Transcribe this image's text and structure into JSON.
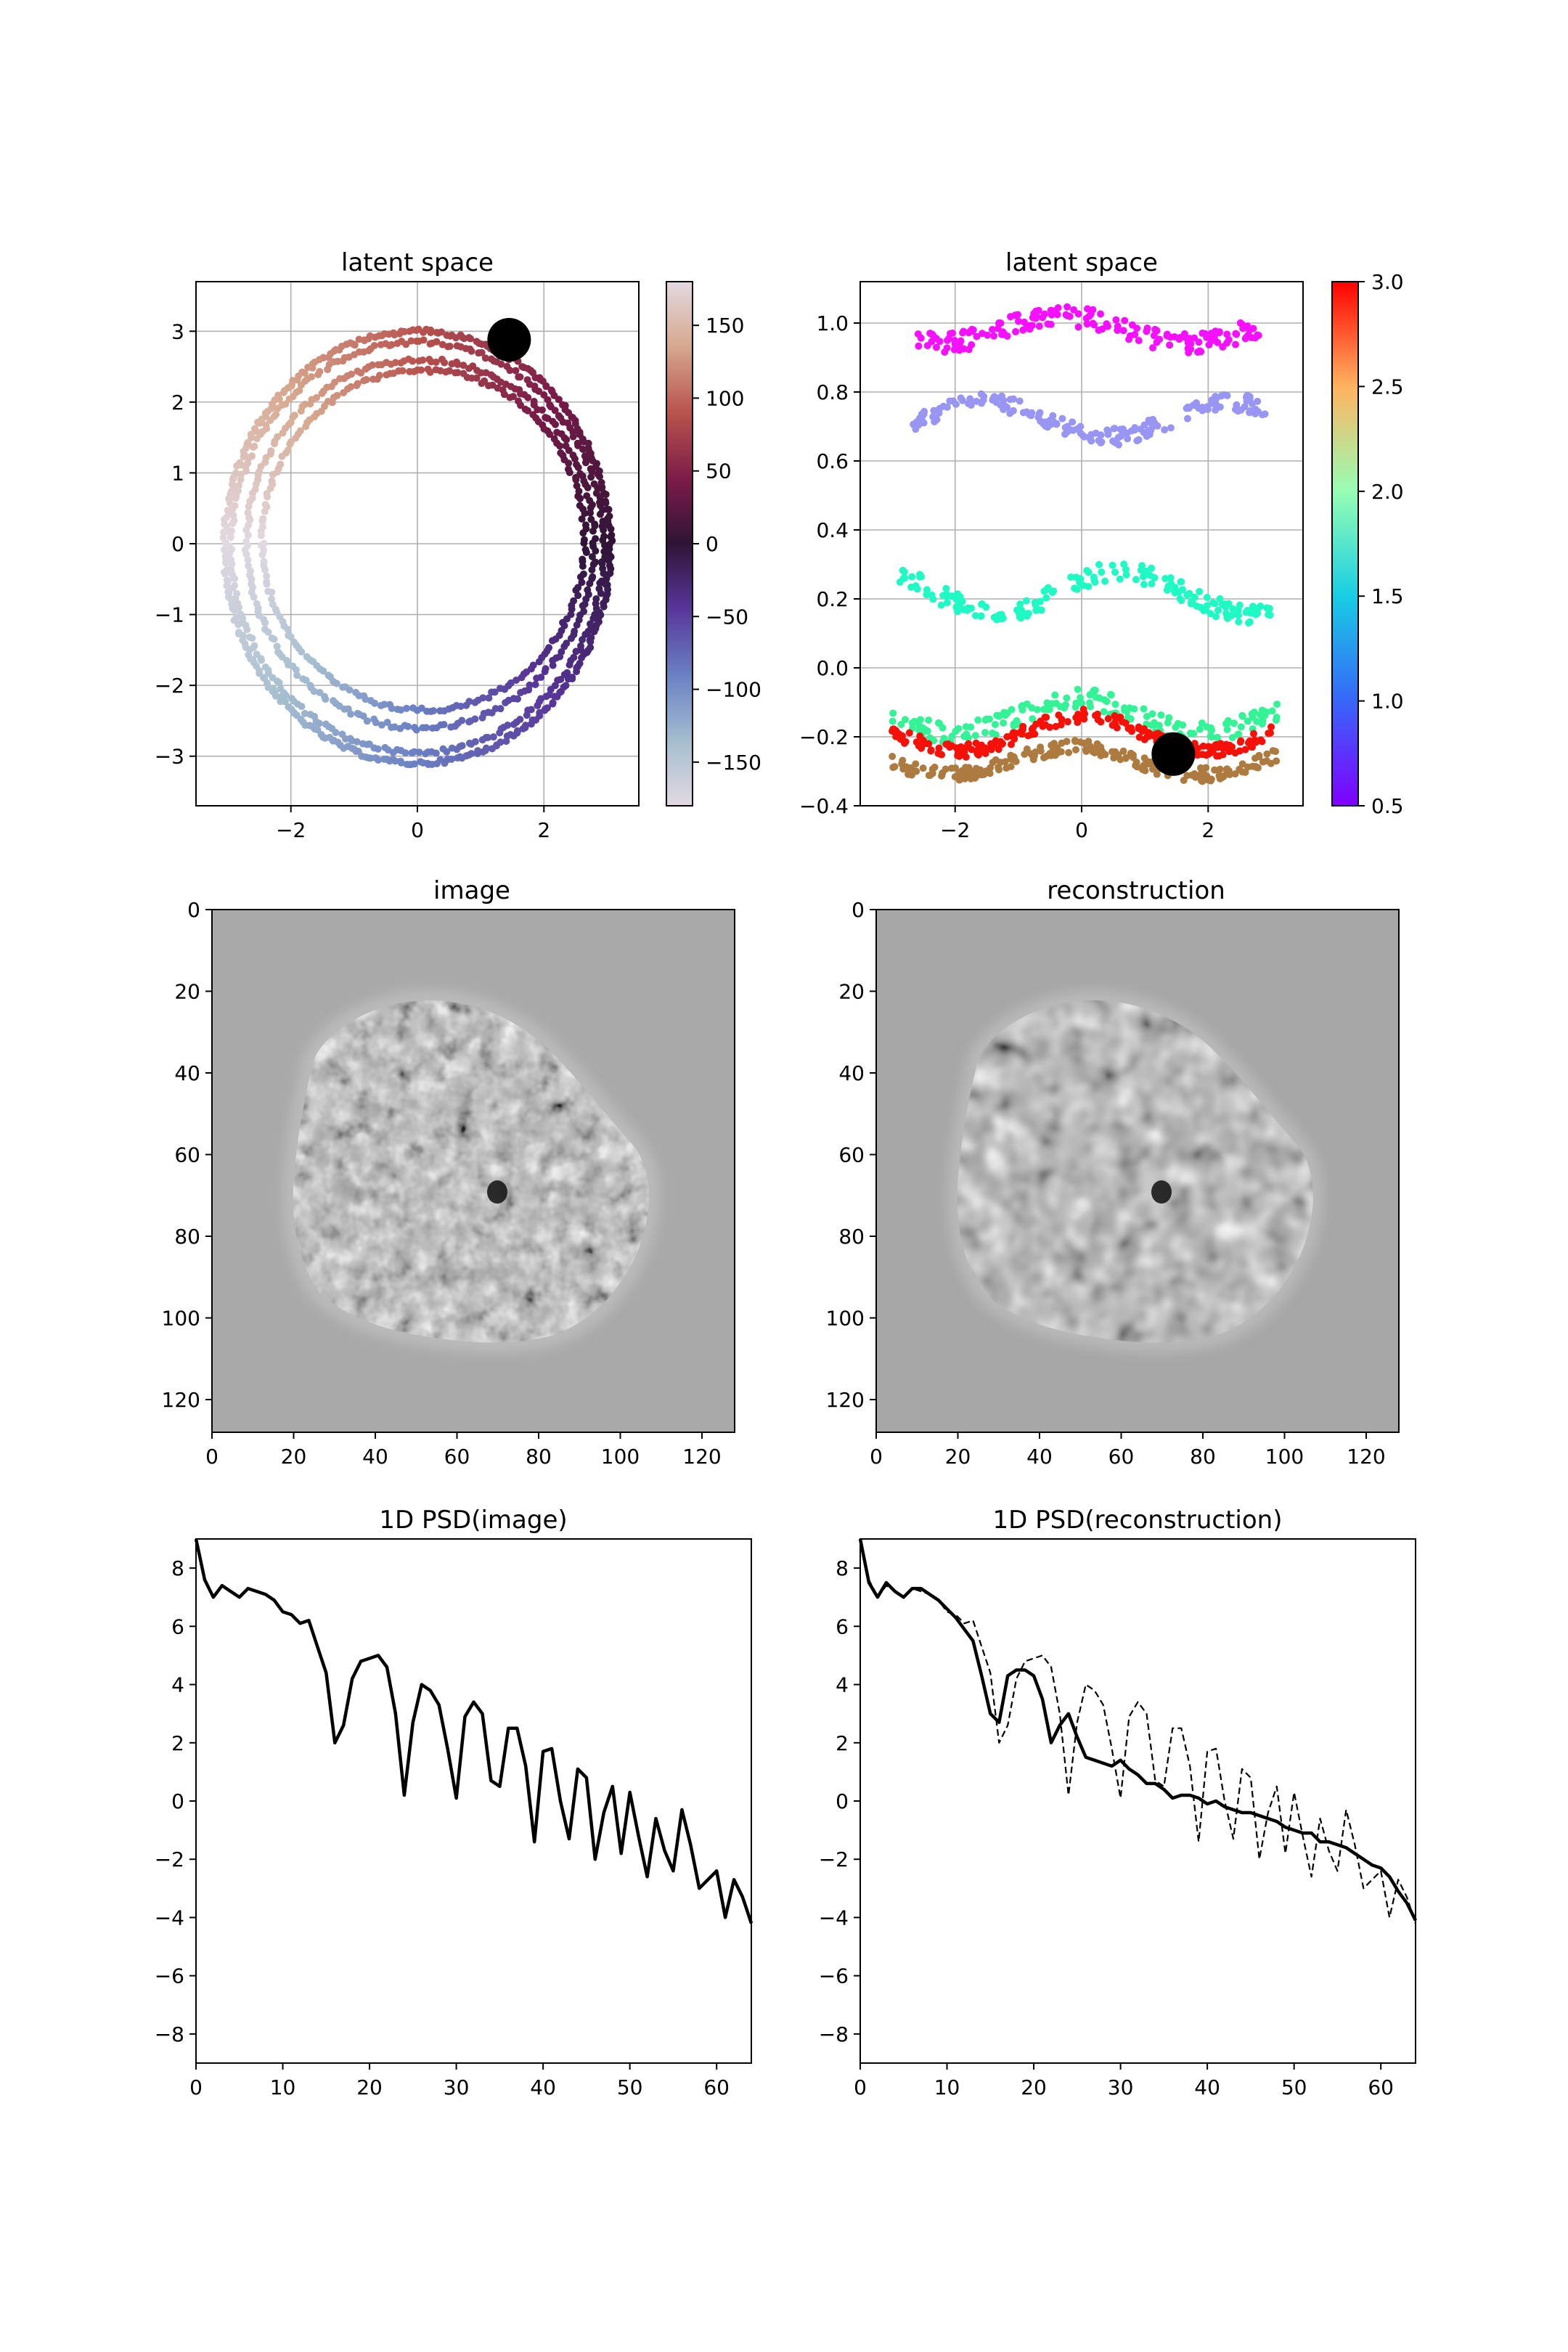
{
  "chart_data": [
    {
      "type": "scatter",
      "title": "latent space",
      "xlim": [
        -3.5,
        3.5
      ],
      "ylim": [
        -3.7,
        3.7
      ],
      "xticks": [
        -2,
        0,
        2
      ],
      "yticks": [
        -3,
        -2,
        -1,
        0,
        1,
        2,
        3
      ],
      "grid": true,
      "colormap": "twilight",
      "color_range": [
        -180,
        180
      ],
      "colorbar_ticks": [
        150,
        100,
        50,
        0,
        -50,
        -100,
        -150
      ],
      "rings": [
        {
          "cx": 0.0,
          "cy": -0.05,
          "rx": 3.05,
          "ry": 3.05,
          "points": 360
        },
        {
          "cx": 0.0,
          "cy": -0.05,
          "rx": 2.95,
          "ry": 2.9,
          "points": 260
        },
        {
          "cx": 0.05,
          "cy": 0.0,
          "rx": 2.75,
          "ry": 2.6,
          "points": 240
        },
        {
          "cx": 0.1,
          "cy": 0.05,
          "rx": 2.55,
          "ry": 2.4,
          "points": 220
        }
      ],
      "marker": {
        "x": 1.45,
        "y": 2.88
      }
    },
    {
      "type": "scatter",
      "title": "latent space",
      "xlim": [
        -3.5,
        3.5
      ],
      "ylim": [
        -0.4,
        1.12
      ],
      "xticks": [
        -2,
        0,
        2
      ],
      "yticks": [
        -0.4,
        -0.2,
        0.0,
        0.2,
        0.4,
        0.6,
        0.8,
        1.0
      ],
      "grid": true,
      "colormap": "rainbow",
      "color_range": [
        0.5,
        3.0
      ],
      "colorbar_ticks": [
        "3.0",
        "2.5",
        "2.0",
        "1.5",
        "1.0",
        "0.5"
      ],
      "series": [
        {
          "c": 0.55,
          "x_range": [
            -2.6,
            2.8
          ],
          "base": 0.98,
          "amp": 0.04,
          "noise": 0.03,
          "points": 180
        },
        {
          "c": 1.0,
          "x_range": [
            -2.7,
            2.9
          ],
          "base": 0.72,
          "amp": 0.05,
          "noise": 0.025,
          "points": 180
        },
        {
          "c": 1.6,
          "x_range": [
            -2.9,
            3.0
          ],
          "base": 0.22,
          "amp": 0.06,
          "noise": 0.03,
          "points": 170
        },
        {
          "c": 2.0,
          "x_range": [
            -3.0,
            3.1
          ],
          "base": -0.14,
          "amp": 0.05,
          "noise": 0.03,
          "points": 160
        },
        {
          "c": 2.6,
          "x_range": [
            -3.0,
            3.1
          ],
          "base": -0.27,
          "amp": 0.04,
          "noise": 0.02,
          "points": 200
        },
        {
          "c": 2.95,
          "x_range": [
            -3.0,
            3.0
          ],
          "base": -0.19,
          "amp": 0.05,
          "noise": 0.02,
          "points": 200
        }
      ],
      "marker": {
        "x": 1.45,
        "y": -0.25
      }
    },
    {
      "type": "heatmap",
      "title": "image",
      "xlim": [
        0,
        128
      ],
      "ylim": [
        128,
        0
      ],
      "xticks": [
        0,
        20,
        40,
        60,
        80,
        100,
        120
      ],
      "yticks": [
        0,
        20,
        40,
        60,
        80,
        100,
        120
      ]
    },
    {
      "type": "heatmap",
      "title": "reconstruction",
      "xlim": [
        0,
        128
      ],
      "ylim": [
        128,
        0
      ],
      "xticks": [
        0,
        20,
        40,
        60,
        80,
        100,
        120
      ],
      "yticks": [
        0,
        20,
        40,
        60,
        80,
        100,
        120
      ]
    },
    {
      "type": "line",
      "title": "1D PSD(image)",
      "xlim": [
        0,
        64
      ],
      "ylim": [
        -9,
        9
      ],
      "xticks": [
        0,
        10,
        20,
        30,
        40,
        50,
        60
      ],
      "yticks": [
        8,
        6,
        4,
        2,
        0,
        -2,
        -4,
        -6,
        -8
      ],
      "series": [
        {
          "style": "solid",
          "x": [
            0,
            1,
            2,
            3,
            4,
            5,
            6,
            7,
            8,
            9,
            10,
            11,
            12,
            13,
            14,
            15,
            16,
            17,
            18,
            19,
            20,
            21,
            22,
            23,
            24,
            25,
            26,
            27,
            28,
            29,
            30,
            31,
            32,
            33,
            34,
            35,
            36,
            37,
            38,
            39,
            40,
            41,
            42,
            43,
            44,
            45,
            46,
            47,
            48,
            49,
            50,
            51,
            52,
            53,
            54,
            55,
            56,
            57,
            58,
            59,
            60,
            61,
            62,
            63,
            64
          ],
          "y": [
            9.0,
            7.6,
            7.0,
            7.4,
            7.2,
            7.0,
            7.3,
            7.2,
            7.1,
            6.9,
            6.5,
            6.4,
            6.1,
            6.2,
            5.3,
            4.4,
            2.0,
            2.6,
            4.2,
            4.8,
            4.9,
            5.0,
            4.6,
            3.0,
            0.2,
            2.7,
            4.0,
            3.8,
            3.3,
            1.8,
            0.1,
            2.9,
            3.4,
            3.0,
            0.7,
            0.5,
            2.5,
            2.5,
            1.2,
            -1.4,
            1.7,
            1.8,
            0.0,
            -1.3,
            1.1,
            0.8,
            -2.0,
            -0.4,
            0.5,
            -1.8,
            0.3,
            -1.2,
            -2.6,
            -0.6,
            -1.7,
            -2.4,
            -0.3,
            -1.5,
            -3.0,
            -2.7,
            -2.4,
            -4.0,
            -2.7,
            -3.3,
            -4.2
          ]
        }
      ]
    },
    {
      "type": "line",
      "title": "1D PSD(reconstruction)",
      "xlim": [
        0,
        64
      ],
      "ylim": [
        -9,
        9
      ],
      "xticks": [
        0,
        10,
        20,
        30,
        40,
        50,
        60
      ],
      "yticks": [
        8,
        6,
        4,
        2,
        0,
        -2,
        -4,
        -6,
        -8
      ],
      "series": [
        {
          "style": "solid",
          "x": [
            0,
            1,
            2,
            3,
            4,
            5,
            6,
            7,
            8,
            9,
            10,
            11,
            12,
            13,
            14,
            15,
            16,
            17,
            18,
            19,
            20,
            21,
            22,
            23,
            24,
            25,
            26,
            27,
            28,
            29,
            30,
            31,
            32,
            33,
            34,
            35,
            36,
            37,
            38,
            39,
            40,
            41,
            42,
            43,
            44,
            45,
            46,
            47,
            48,
            49,
            50,
            51,
            52,
            53,
            54,
            55,
            56,
            57,
            58,
            59,
            60,
            61,
            62,
            63,
            64
          ],
          "y": [
            9.0,
            7.5,
            7.0,
            7.5,
            7.2,
            7.0,
            7.3,
            7.3,
            7.1,
            6.9,
            6.6,
            6.3,
            5.9,
            5.5,
            4.3,
            3.0,
            2.7,
            4.3,
            4.5,
            4.5,
            4.3,
            3.5,
            2.0,
            2.6,
            3.0,
            2.2,
            1.5,
            1.4,
            1.3,
            1.2,
            1.4,
            1.1,
            0.9,
            0.6,
            0.6,
            0.4,
            0.1,
            0.2,
            0.2,
            0.1,
            -0.1,
            0.0,
            -0.2,
            -0.3,
            -0.4,
            -0.4,
            -0.5,
            -0.6,
            -0.7,
            -0.9,
            -1.0,
            -1.1,
            -1.1,
            -1.4,
            -1.4,
            -1.5,
            -1.6,
            -1.8,
            -2.0,
            -2.2,
            -2.3,
            -2.6,
            -3.1,
            -3.5,
            -4.1
          ]
        },
        {
          "style": "dashed",
          "x": [
            0,
            1,
            2,
            3,
            4,
            5,
            6,
            7,
            8,
            9,
            10,
            11,
            12,
            13,
            14,
            15,
            16,
            17,
            18,
            19,
            20,
            21,
            22,
            23,
            24,
            25,
            26,
            27,
            28,
            29,
            30,
            31,
            32,
            33,
            34,
            35,
            36,
            37,
            38,
            39,
            40,
            41,
            42,
            43,
            44,
            45,
            46,
            47,
            48,
            49,
            50,
            51,
            52,
            53,
            54,
            55,
            56,
            57,
            58,
            59,
            60,
            61,
            62,
            63,
            64
          ],
          "y": [
            9.0,
            7.6,
            7.0,
            7.4,
            7.2,
            7.0,
            7.3,
            7.2,
            7.1,
            6.9,
            6.5,
            6.4,
            6.1,
            6.2,
            5.3,
            4.4,
            2.0,
            2.6,
            4.2,
            4.8,
            4.9,
            5.0,
            4.6,
            3.0,
            0.2,
            2.7,
            4.0,
            3.8,
            3.3,
            1.8,
            0.1,
            2.9,
            3.4,
            3.0,
            0.7,
            0.5,
            2.5,
            2.5,
            1.2,
            -1.4,
            1.7,
            1.8,
            0.0,
            -1.3,
            1.1,
            0.8,
            -2.0,
            -0.4,
            0.5,
            -1.8,
            0.3,
            -1.2,
            -2.6,
            -0.6,
            -1.7,
            -2.4,
            -0.3,
            -1.5,
            -3.0,
            -2.7,
            -2.4,
            -4.0,
            -2.7,
            -3.3,
            -4.2
          ]
        }
      ]
    }
  ]
}
